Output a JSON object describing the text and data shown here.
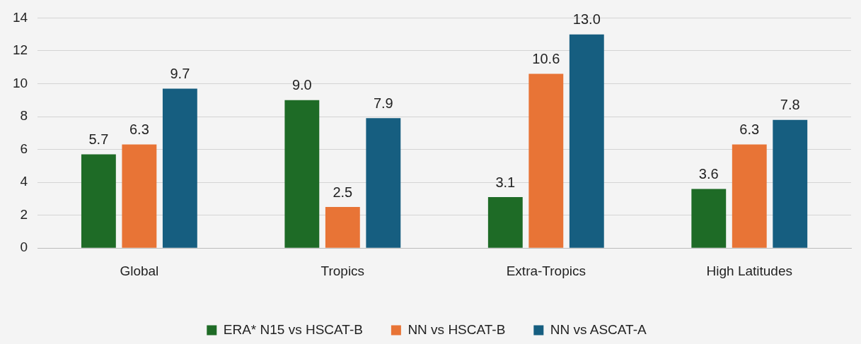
{
  "chart_data": {
    "type": "bar",
    "categories": [
      "Global",
      "Tropics",
      "Extra-Tropics",
      "High Latitudes"
    ],
    "series": [
      {
        "name": "ERA* N15 vs HSCAT-B",
        "color": "#1e6b26",
        "values": [
          5.7,
          9.0,
          3.1,
          3.6
        ],
        "value_labels": [
          "5.7",
          "9.0",
          "3.1",
          "3.6"
        ]
      },
      {
        "name": "NN vs HSCAT-B",
        "color": "#e87436",
        "values": [
          6.3,
          2.5,
          10.6,
          6.3
        ],
        "value_labels": [
          "6.3",
          "2.5",
          "10.6",
          "6.3"
        ]
      },
      {
        "name": "NN vs ASCAT-A",
        "color": "#165e80",
        "values": [
          9.7,
          7.9,
          13.0,
          7.8
        ],
        "value_labels": [
          "9.7",
          "7.9",
          "13.0",
          "7.8"
        ]
      }
    ],
    "ylim": [
      0,
      14
    ],
    "yticks": [
      0,
      2,
      4,
      6,
      8,
      10,
      12,
      14
    ],
    "grid": "y",
    "legend": "bottom"
  }
}
